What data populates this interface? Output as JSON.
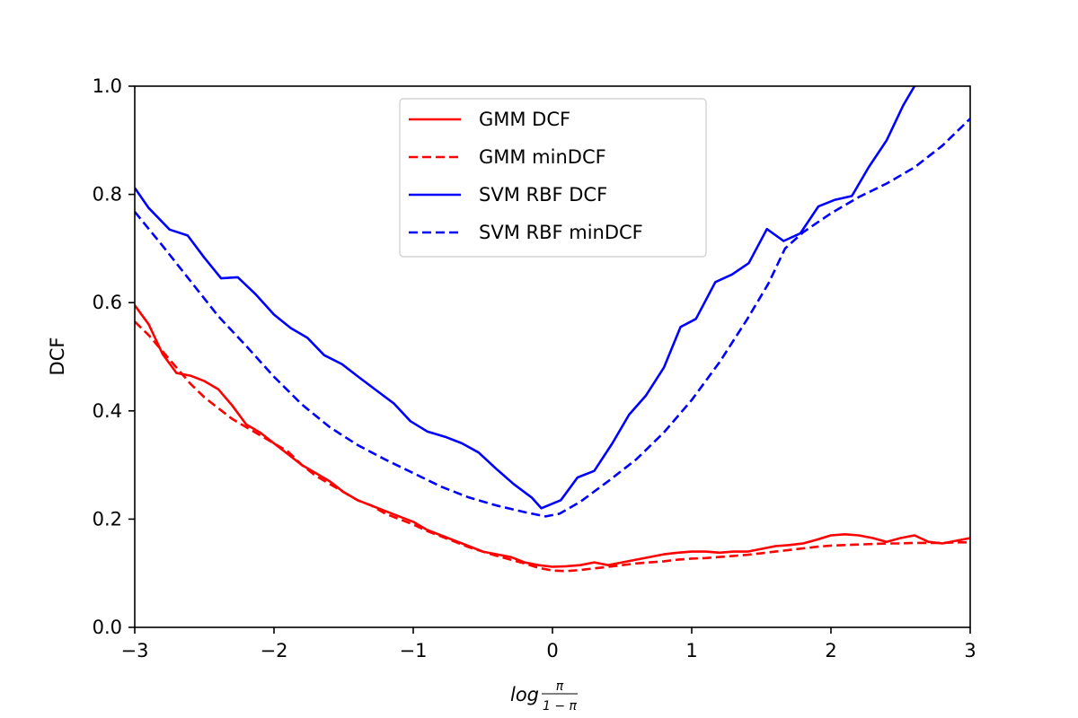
{
  "chart_data": {
    "type": "line",
    "title": "",
    "xlabel": {
      "base": "log",
      "numerator": "π",
      "denominator": "1 − π"
    },
    "ylabel": "DCF",
    "xlim": [
      -3,
      3
    ],
    "ylim": [
      0.0,
      1.0
    ],
    "xticks": [
      -3,
      -2,
      -1,
      0,
      1,
      2,
      3
    ],
    "xtick_labels": [
      "−3",
      "−2",
      "−1",
      "0",
      "1",
      "2",
      "3"
    ],
    "yticks": [
      0.0,
      0.2,
      0.4,
      0.6,
      0.8,
      1.0
    ],
    "ytick_labels": [
      "0.0",
      "0.2",
      "0.4",
      "0.6",
      "0.8",
      "1.0"
    ],
    "grid": false,
    "legend_position": "upper-center",
    "series": [
      {
        "name": "GMM DCF",
        "color": "#ff0000",
        "dash": "solid",
        "x": [
          -3.0,
          -2.9,
          -2.8,
          -2.7,
          -2.6,
          -2.5,
          -2.4,
          -2.3,
          -2.2,
          -2.1,
          -2.0,
          -1.9,
          -1.8,
          -1.7,
          -1.6,
          -1.5,
          -1.4,
          -1.3,
          -1.2,
          -1.1,
          -1.0,
          -0.9,
          -0.8,
          -0.7,
          -0.6,
          -0.5,
          -0.4,
          -0.3,
          -0.2,
          -0.1,
          0.0,
          0.1,
          0.2,
          0.3,
          0.4,
          0.5,
          0.6,
          0.7,
          0.8,
          0.9,
          1.0,
          1.1,
          1.2,
          1.3,
          1.4,
          1.5,
          1.6,
          1.7,
          1.8,
          1.9,
          2.0,
          2.1,
          2.2,
          2.3,
          2.4,
          2.5,
          2.6,
          2.7,
          2.8,
          2.9,
          3.0
        ],
        "y": [
          0.595,
          0.56,
          0.505,
          0.47,
          0.465,
          0.455,
          0.44,
          0.41,
          0.375,
          0.36,
          0.34,
          0.32,
          0.3,
          0.285,
          0.27,
          0.25,
          0.235,
          0.225,
          0.215,
          0.205,
          0.195,
          0.18,
          0.17,
          0.16,
          0.15,
          0.14,
          0.135,
          0.13,
          0.12,
          0.115,
          0.112,
          0.113,
          0.115,
          0.12,
          0.115,
          0.12,
          0.125,
          0.13,
          0.135,
          0.138,
          0.14,
          0.14,
          0.138,
          0.14,
          0.14,
          0.145,
          0.15,
          0.152,
          0.155,
          0.162,
          0.17,
          0.172,
          0.17,
          0.165,
          0.158,
          0.165,
          0.17,
          0.158,
          0.155,
          0.16,
          0.165
        ]
      },
      {
        "name": "GMM minDCF",
        "color": "#ff0000",
        "dash": "dashed",
        "x": [
          -3.0,
          -2.9,
          -2.8,
          -2.7,
          -2.6,
          -2.5,
          -2.4,
          -2.3,
          -2.2,
          -2.1,
          -2.0,
          -1.9,
          -1.8,
          -1.7,
          -1.6,
          -1.5,
          -1.4,
          -1.3,
          -1.2,
          -1.1,
          -1.0,
          -0.9,
          -0.8,
          -0.7,
          -0.6,
          -0.5,
          -0.4,
          -0.3,
          -0.2,
          -0.1,
          0.0,
          0.1,
          0.2,
          0.3,
          0.4,
          0.5,
          0.6,
          0.7,
          0.8,
          0.9,
          1.0,
          1.1,
          1.2,
          1.3,
          1.4,
          1.5,
          1.6,
          1.7,
          1.8,
          1.9,
          2.0,
          2.1,
          2.2,
          2.3,
          2.4,
          2.5,
          2.6,
          2.7,
          2.8,
          2.9,
          3.0
        ],
        "y": [
          0.565,
          0.54,
          0.51,
          0.48,
          0.45,
          0.425,
          0.405,
          0.385,
          0.37,
          0.355,
          0.34,
          0.325,
          0.3,
          0.28,
          0.265,
          0.25,
          0.235,
          0.225,
          0.21,
          0.2,
          0.19,
          0.178,
          0.168,
          0.158,
          0.148,
          0.14,
          0.132,
          0.125,
          0.118,
          0.11,
          0.105,
          0.104,
          0.106,
          0.109,
          0.112,
          0.115,
          0.118,
          0.12,
          0.122,
          0.125,
          0.127,
          0.128,
          0.13,
          0.132,
          0.134,
          0.137,
          0.14,
          0.143,
          0.146,
          0.149,
          0.151,
          0.152,
          0.153,
          0.154,
          0.155,
          0.155,
          0.156,
          0.156,
          0.156,
          0.157,
          0.157
        ]
      },
      {
        "name": "SVM RBF DCF",
        "color": "#0000ff",
        "dash": "solid",
        "x": [
          -3.0,
          -2.9,
          -2.75,
          -2.62,
          -2.5,
          -2.38,
          -2.26,
          -2.13,
          -2.0,
          -1.88,
          -1.76,
          -1.64,
          -1.51,
          -1.39,
          -1.26,
          -1.14,
          -1.02,
          -0.9,
          -0.77,
          -0.65,
          -0.53,
          -0.4,
          -0.28,
          -0.15,
          -0.08,
          0.06,
          0.18,
          0.3,
          0.43,
          0.55,
          0.67,
          0.8,
          0.92,
          1.03,
          1.17,
          1.29,
          1.41,
          1.54,
          1.66,
          1.78,
          1.91,
          2.03,
          2.15,
          2.27,
          2.4,
          2.52,
          2.6,
          2.65
        ],
        "y": [
          0.812,
          0.775,
          0.735,
          0.724,
          0.683,
          0.645,
          0.647,
          0.615,
          0.578,
          0.553,
          0.535,
          0.503,
          0.486,
          0.462,
          0.437,
          0.414,
          0.381,
          0.362,
          0.352,
          0.34,
          0.323,
          0.292,
          0.265,
          0.24,
          0.22,
          0.235,
          0.277,
          0.289,
          0.34,
          0.393,
          0.428,
          0.48,
          0.555,
          0.57,
          0.638,
          0.652,
          0.673,
          0.736,
          0.714,
          0.728,
          0.778,
          0.79,
          0.797,
          0.85,
          0.9,
          0.965,
          1.0,
          1.02
        ]
      },
      {
        "name": "SVM RBF minDCF",
        "color": "#0000ff",
        "dash": "dashed",
        "x": [
          -3.0,
          -2.8,
          -2.6,
          -2.4,
          -2.2,
          -2.0,
          -1.8,
          -1.6,
          -1.4,
          -1.2,
          -1.0,
          -0.8,
          -0.6,
          -0.4,
          -0.2,
          -0.05,
          0.05,
          0.2,
          0.4,
          0.6,
          0.8,
          1.0,
          1.2,
          1.4,
          1.55,
          1.67,
          1.8,
          2.0,
          2.2,
          2.4,
          2.6,
          2.8,
          3.0
        ],
        "y": [
          0.768,
          0.705,
          0.64,
          0.575,
          0.52,
          0.463,
          0.412,
          0.37,
          0.337,
          0.31,
          0.285,
          0.26,
          0.24,
          0.225,
          0.213,
          0.205,
          0.21,
          0.232,
          0.27,
          0.31,
          0.36,
          0.42,
          0.49,
          0.57,
          0.635,
          0.7,
          0.73,
          0.765,
          0.795,
          0.82,
          0.85,
          0.89,
          0.94
        ]
      }
    ]
  }
}
